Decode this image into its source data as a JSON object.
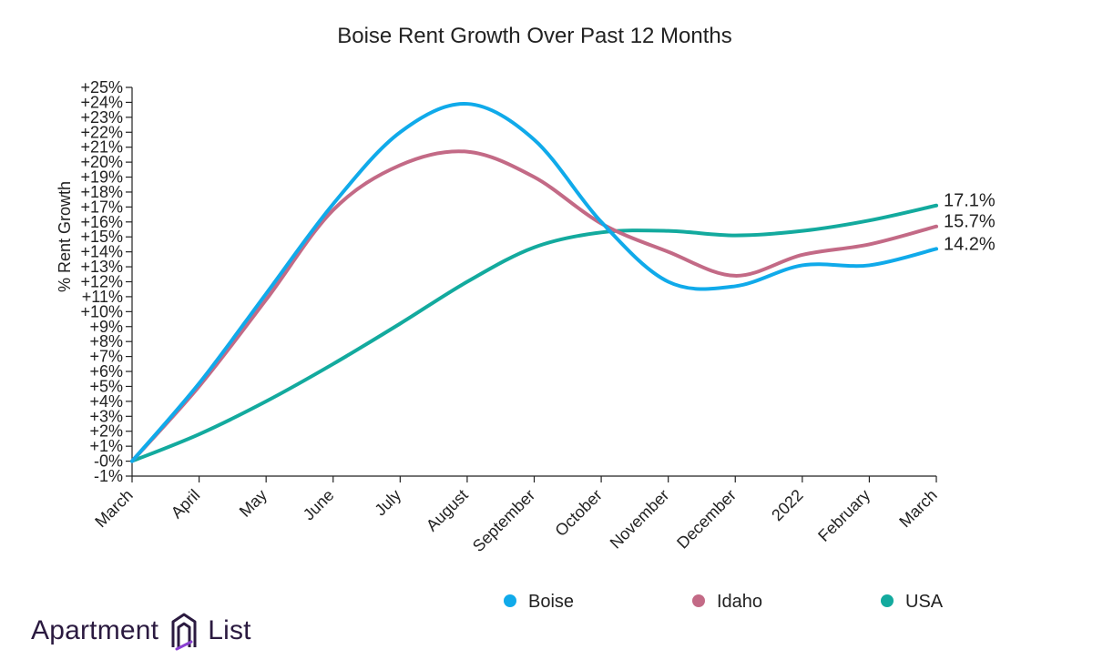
{
  "chart_data": {
    "type": "line",
    "title": "Boise Rent Growth Over Past 12 Months",
    "ylabel": "% Rent Growth",
    "xlabel": "",
    "categories": [
      "March",
      "April",
      "May",
      "June",
      "July",
      "August",
      "September",
      "October",
      "November",
      "December",
      "2022",
      "February",
      "March"
    ],
    "ylim": [
      -1,
      25
    ],
    "yticks": [
      "-1%",
      "-0%",
      "+1%",
      "+2%",
      "+3%",
      "+4%",
      "+5%",
      "+6%",
      "+7%",
      "+8%",
      "+9%",
      "+10%",
      "+11%",
      "+12%",
      "+13%",
      "+14%",
      "+15%",
      "+16%",
      "+17%",
      "+18%",
      "+19%",
      "+20%",
      "+21%",
      "+22%",
      "+23%",
      "+24%",
      "+25%"
    ],
    "series": [
      {
        "name": "Boise",
        "color": "#10aaea",
        "values": [
          0,
          5.2,
          11.2,
          17.2,
          22.0,
          23.9,
          21.5,
          16.0,
          12.0,
          11.7,
          13.1,
          13.1,
          14.2
        ],
        "end_label": "14.2%"
      },
      {
        "name": "Idaho",
        "color": "#c36a86",
        "values": [
          0,
          5.0,
          10.8,
          16.8,
          19.8,
          20.7,
          19.0,
          15.9,
          14.0,
          12.4,
          13.8,
          14.5,
          15.7
        ],
        "end_label": "15.7%"
      },
      {
        "name": "USA",
        "color": "#13aa9e",
        "values": [
          0,
          1.8,
          4.0,
          6.5,
          9.2,
          12.0,
          14.3,
          15.3,
          15.4,
          15.1,
          15.4,
          16.1,
          17.1
        ],
        "end_label": "17.1%"
      }
    ],
    "grid": false,
    "legend_position": "bottom"
  },
  "brand": {
    "left": "Apartment",
    "right": "List",
    "logo_icon": "apartment-list-logo-icon",
    "color": "#2b1a40"
  }
}
